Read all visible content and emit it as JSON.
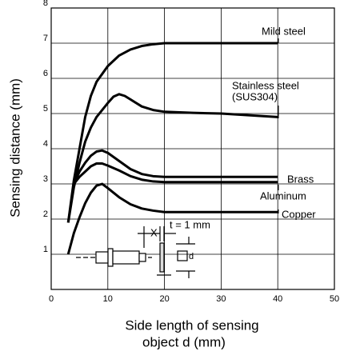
{
  "chart_data": {
    "type": "line",
    "ylabel": "Sensing distance  (mm)",
    "xlabel": [
      "Side length of sensing",
      "object d (mm)"
    ],
    "xlim": [
      0,
      50
    ],
    "xticks": [
      0,
      10,
      20,
      30,
      40,
      50
    ],
    "ylim": [
      0,
      8
    ],
    "yticks": [
      1,
      2,
      3,
      4,
      5,
      6,
      7,
      8
    ],
    "grid": true,
    "series": [
      {
        "name": "Mild steel",
        "color": "#000000",
        "x": [
          3,
          4,
          5,
          6,
          7,
          8,
          10,
          12,
          14,
          16,
          18,
          20,
          25,
          30,
          40
        ],
        "values": [
          1.9,
          3.1,
          4.0,
          4.9,
          5.5,
          5.9,
          6.35,
          6.65,
          6.82,
          6.92,
          6.97,
          7.0,
          7.0,
          7.0,
          7.0
        ]
      },
      {
        "name": [
          "Stainless steel",
          "(SUS304)"
        ],
        "color": "#000000",
        "x": [
          3,
          4,
          5,
          6,
          7,
          8,
          10,
          11,
          12,
          13,
          14,
          16,
          18,
          20,
          25,
          30,
          40
        ],
        "values": [
          1.9,
          2.9,
          3.6,
          4.2,
          4.6,
          4.9,
          5.3,
          5.48,
          5.55,
          5.5,
          5.4,
          5.2,
          5.1,
          5.05,
          5.02,
          5.0,
          4.9
        ]
      },
      {
        "name": "Brass",
        "color": "#000000",
        "x": [
          4,
          5,
          6,
          7,
          8,
          9,
          10,
          12,
          14,
          16,
          18,
          20,
          30,
          40
        ],
        "values": [
          3.0,
          3.35,
          3.6,
          3.8,
          3.92,
          3.95,
          3.88,
          3.65,
          3.42,
          3.28,
          3.22,
          3.2,
          3.2,
          3.2
        ]
      },
      {
        "name": "Aluminum",
        "color": "#000000",
        "x": [
          4,
          5,
          6,
          7,
          8,
          9,
          10,
          12,
          14,
          16,
          18,
          20,
          30,
          40
        ],
        "values": [
          3.0,
          3.2,
          3.35,
          3.5,
          3.58,
          3.58,
          3.52,
          3.38,
          3.22,
          3.12,
          3.07,
          3.05,
          3.05,
          3.05
        ]
      },
      {
        "name": "Copper",
        "color": "#000000",
        "x": [
          3,
          4,
          5,
          6,
          7,
          8,
          9,
          10,
          12,
          14,
          16,
          18,
          20,
          30,
          40
        ],
        "values": [
          1.0,
          1.6,
          2.05,
          2.45,
          2.75,
          2.95,
          3.0,
          2.88,
          2.62,
          2.42,
          2.3,
          2.24,
          2.2,
          2.2,
          2.2
        ]
      }
    ],
    "inset_labels": [
      "X",
      "t = 1 mm",
      "d"
    ]
  }
}
